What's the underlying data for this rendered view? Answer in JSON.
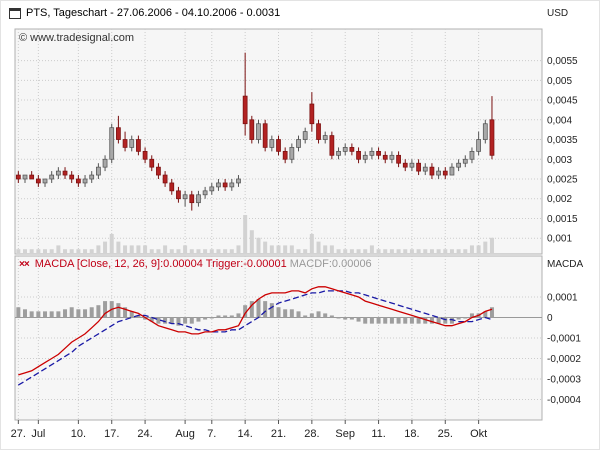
{
  "window": {
    "title": "PTS, Tageschart - 27.06.2006 - 04.10.2006 - 0.0031"
  },
  "watermark": "© www.tradesignal.com",
  "axes": {
    "price_unit": "USD",
    "macd_unit": "MACDA"
  },
  "indicator": {
    "prefix": "××",
    "macda": "MACDA [Close, 12, 26, 9]:0.00004",
    "trigger": "Trigger:-0.00001",
    "macdf": "MACDF:0.00006"
  },
  "colors": {
    "up": "#a8a8a8",
    "up_border": "#555555",
    "down": "#b22222",
    "down_border": "#7a1010",
    "macd_line": "#cc0000",
    "trigger_line": "#1a1aa6",
    "histogram": "#9e9e9e",
    "volume": "#d2d2d2",
    "grid": "#cccccc",
    "panel_bg": "#f6f6f6",
    "panel_border": "#b0b0b0",
    "axis_text": "#222222",
    "zero_line": "#999999"
  },
  "chart_data": [
    {
      "type": "candlestick",
      "symbol": "PTS",
      "timeframe": "Tageschart",
      "date_range": "27.06.2006 - 04.10.2006",
      "last_close": 0.0031,
      "ylabel": "USD",
      "ylim": [
        0.0006,
        0.0063
      ],
      "slots": 79,
      "y_ticks": [
        {
          "v": 0.0055,
          "label": "0,0055"
        },
        {
          "v": 0.005,
          "label": "0,005"
        },
        {
          "v": 0.0045,
          "label": "0,0045"
        },
        {
          "v": 0.004,
          "label": "0,004"
        },
        {
          "v": 0.0035,
          "label": "0,0035"
        },
        {
          "v": 0.003,
          "label": "0,003"
        },
        {
          "v": 0.0025,
          "label": "0,0025"
        },
        {
          "v": 0.002,
          "label": "0,002"
        },
        {
          "v": 0.0015,
          "label": "0,0015"
        },
        {
          "v": 0.001,
          "label": "0,001"
        }
      ],
      "x_ticks": [
        {
          "i": 0,
          "label": "27."
        },
        {
          "i": 3,
          "label": "Jul"
        },
        {
          "i": 9,
          "label": "10."
        },
        {
          "i": 14,
          "label": "17."
        },
        {
          "i": 19,
          "label": "24."
        },
        {
          "i": 25,
          "label": "Aug"
        },
        {
          "i": 29,
          "label": "7."
        },
        {
          "i": 34,
          "label": "14."
        },
        {
          "i": 39,
          "label": "21."
        },
        {
          "i": 44,
          "label": "28."
        },
        {
          "i": 49,
          "label": "Sep"
        },
        {
          "i": 54,
          "label": "11."
        },
        {
          "i": 59,
          "label": "18."
        },
        {
          "i": 64,
          "label": "25."
        },
        {
          "i": 69,
          "label": "Okt"
        }
      ],
      "candles": [
        [
          0.0026,
          0.0027,
          0.0024,
          0.0025
        ],
        [
          0.0025,
          0.0026,
          0.0024,
          0.0026
        ],
        [
          0.0026,
          0.0027,
          0.0025,
          0.0025
        ],
        [
          0.0025,
          0.0026,
          0.0023,
          0.0024
        ],
        [
          0.0024,
          0.0025,
          0.0023,
          0.0025
        ],
        [
          0.0025,
          0.0027,
          0.0024,
          0.0026
        ],
        [
          0.0026,
          0.0028,
          0.0025,
          0.0027
        ],
        [
          0.0027,
          0.0028,
          0.0025,
          0.0026
        ],
        [
          0.0026,
          0.0027,
          0.0024,
          0.0025
        ],
        [
          0.0025,
          0.0026,
          0.0023,
          0.0024
        ],
        [
          0.0024,
          0.0026,
          0.0023,
          0.0025
        ],
        [
          0.0025,
          0.0027,
          0.0024,
          0.0026
        ],
        [
          0.0026,
          0.0029,
          0.0025,
          0.0028
        ],
        [
          0.0028,
          0.0031,
          0.0027,
          0.003
        ],
        [
          0.003,
          0.0039,
          0.0029,
          0.0038
        ],
        [
          0.0038,
          0.0041,
          0.0034,
          0.0035
        ],
        [
          0.0035,
          0.0037,
          0.0032,
          0.0033
        ],
        [
          0.0033,
          0.0036,
          0.0032,
          0.0035
        ],
        [
          0.0035,
          0.0036,
          0.0031,
          0.0032
        ],
        [
          0.0032,
          0.0033,
          0.0029,
          0.003
        ],
        [
          0.003,
          0.0031,
          0.0027,
          0.0028
        ],
        [
          0.0028,
          0.0029,
          0.0025,
          0.0026
        ],
        [
          0.0026,
          0.0027,
          0.0023,
          0.0024
        ],
        [
          0.0024,
          0.0025,
          0.0021,
          0.0022
        ],
        [
          0.0022,
          0.0023,
          0.0019,
          0.002
        ],
        [
          0.002,
          0.0022,
          0.0018,
          0.0021
        ],
        [
          0.0021,
          0.0022,
          0.0017,
          0.0019
        ],
        [
          0.0019,
          0.0022,
          0.0018,
          0.0021
        ],
        [
          0.0021,
          0.0023,
          0.002,
          0.0022
        ],
        [
          0.0022,
          0.0024,
          0.0021,
          0.0023
        ],
        [
          0.0023,
          0.0025,
          0.0022,
          0.0024
        ],
        [
          0.0024,
          0.0025,
          0.0022,
          0.0023
        ],
        [
          0.0023,
          0.0025,
          0.0022,
          0.0024
        ],
        [
          0.0024,
          0.0026,
          0.0023,
          0.0025
        ],
        [
          0.0046,
          0.0057,
          0.0036,
          0.0039
        ],
        [
          0.004,
          0.0041,
          0.0034,
          0.0035
        ],
        [
          0.0035,
          0.004,
          0.0034,
          0.0039
        ],
        [
          0.0039,
          0.004,
          0.0032,
          0.0033
        ],
        [
          0.0033,
          0.0036,
          0.0032,
          0.0035
        ],
        [
          0.0035,
          0.0036,
          0.0031,
          0.0032
        ],
        [
          0.0032,
          0.0033,
          0.0029,
          0.003
        ],
        [
          0.003,
          0.0034,
          0.0029,
          0.0033
        ],
        [
          0.0033,
          0.0036,
          0.0032,
          0.0035
        ],
        [
          0.0035,
          0.0038,
          0.0034,
          0.0037
        ],
        [
          0.0044,
          0.0047,
          0.0037,
          0.0039
        ],
        [
          0.0039,
          0.004,
          0.0034,
          0.0035
        ],
        [
          0.0035,
          0.0037,
          0.0034,
          0.0036
        ],
        [
          0.0036,
          0.0037,
          0.003,
          0.0031
        ],
        [
          0.0031,
          0.0033,
          0.003,
          0.0032
        ],
        [
          0.0032,
          0.0034,
          0.0031,
          0.0033
        ],
        [
          0.0033,
          0.0034,
          0.0031,
          0.0032
        ],
        [
          0.0032,
          0.0033,
          0.0029,
          0.003
        ],
        [
          0.003,
          0.0032,
          0.0029,
          0.0031
        ],
        [
          0.0031,
          0.0033,
          0.003,
          0.0032
        ],
        [
          0.0032,
          0.0033,
          0.003,
          0.0031
        ],
        [
          0.0031,
          0.0032,
          0.0029,
          0.003
        ],
        [
          0.003,
          0.0032,
          0.0029,
          0.0031
        ],
        [
          0.0031,
          0.0032,
          0.0028,
          0.0029
        ],
        [
          0.0029,
          0.003,
          0.0027,
          0.0028
        ],
        [
          0.0028,
          0.003,
          0.0027,
          0.0029
        ],
        [
          0.0029,
          0.003,
          0.0026,
          0.0027
        ],
        [
          0.0027,
          0.0029,
          0.0026,
          0.0028
        ],
        [
          0.0028,
          0.0029,
          0.0025,
          0.0026
        ],
        [
          0.0026,
          0.0028,
          0.0025,
          0.0027
        ],
        [
          0.0027,
          0.0028,
          0.0025,
          0.0026
        ],
        [
          0.0026,
          0.0029,
          0.0026,
          0.0028
        ],
        [
          0.0028,
          0.003,
          0.0027,
          0.0029
        ],
        [
          0.0029,
          0.0031,
          0.0028,
          0.003
        ],
        [
          0.003,
          0.0033,
          0.0029,
          0.0032
        ],
        [
          0.0032,
          0.0037,
          0.0031,
          0.0035
        ],
        [
          0.0035,
          0.004,
          0.0034,
          0.0039
        ],
        [
          0.004,
          0.0046,
          0.003,
          0.0031
        ]
      ],
      "volume_rel": [
        1,
        1,
        1,
        1,
        1,
        1,
        2,
        1,
        1,
        1,
        1,
        1,
        2,
        3,
        5,
        3,
        2,
        2,
        2,
        2,
        1,
        1,
        2,
        1,
        1,
        2,
        1,
        1,
        1,
        1,
        1,
        1,
        1,
        2,
        10,
        6,
        4,
        3,
        2,
        2,
        2,
        2,
        1,
        1,
        5,
        3,
        2,
        2,
        1,
        1,
        1,
        1,
        1,
        2,
        1,
        1,
        1,
        1,
        1,
        1,
        1,
        1,
        1,
        1,
        1,
        1,
        1,
        1,
        2,
        2,
        3,
        4
      ]
    },
    {
      "type": "macd",
      "name": "MACDA [Close, 12, 26, 9]",
      "last_macd": 4e-05,
      "last_trigger": -1e-05,
      "last_macdf": 6e-05,
      "ylim": [
        -0.0005,
        0.0003
      ],
      "unit": 1e-05,
      "y_ticks": [
        {
          "v": 0.0001,
          "label": "0,0001"
        },
        {
          "v": 0,
          "label": "0"
        },
        {
          "v": -0.0001,
          "label": "-0,0001"
        },
        {
          "v": -0.0002,
          "label": "-0,0002"
        },
        {
          "v": -0.0003,
          "label": "-0,0003"
        },
        {
          "v": -0.0004,
          "label": "-0,0004"
        }
      ],
      "macd": [
        -28,
        -27,
        -26,
        -24,
        -22,
        -20,
        -18,
        -15,
        -12,
        -10,
        -8,
        -5,
        -2,
        2,
        4,
        5,
        4,
        3,
        2,
        0,
        -2,
        -4,
        -5,
        -6,
        -7,
        -7,
        -8,
        -8,
        -7,
        -7,
        -6,
        -6,
        -5,
        -4,
        2,
        6,
        9,
        11,
        12,
        12,
        12,
        13,
        13,
        12,
        14,
        15,
        15,
        14,
        13,
        12,
        11,
        10,
        8,
        7,
        6,
        5,
        4,
        3,
        2,
        1,
        0,
        -1,
        -2,
        -3,
        -4,
        -4,
        -3,
        -2,
        0,
        1,
        3,
        4
      ],
      "trigger": [
        -33,
        -31,
        -29,
        -27,
        -25,
        -23,
        -21,
        -19,
        -17,
        -14,
        -12,
        -10,
        -8,
        -6,
        -4,
        -2,
        -1,
        0,
        1,
        1,
        0,
        -1,
        -2,
        -3,
        -3,
        -4,
        -5,
        -6,
        -6,
        -7,
        -7,
        -7,
        -6,
        -6,
        -4,
        -2,
        0,
        3,
        5,
        7,
        8,
        9,
        10,
        11,
        12,
        12,
        13,
        13,
        13,
        13,
        12,
        12,
        11,
        10,
        9,
        8,
        7,
        6,
        5,
        4,
        3,
        2,
        1,
        0,
        -1,
        -1,
        -2,
        -2,
        -2,
        -1,
        0,
        -1
      ],
      "histogram": [
        5,
        4,
        3,
        3,
        3,
        3,
        3,
        4,
        5,
        4,
        4,
        5,
        6,
        8,
        8,
        7,
        5,
        3,
        1,
        -1,
        -2,
        -3,
        -3,
        -3,
        -4,
        -3,
        -3,
        -2,
        -1,
        0,
        1,
        1,
        1,
        2,
        6,
        8,
        9,
        8,
        7,
        5,
        4,
        4,
        3,
        1,
        2,
        3,
        2,
        1,
        0,
        -1,
        -1,
        -2,
        -3,
        -3,
        -3,
        -3,
        -3,
        -3,
        -3,
        -3,
        -3,
        -3,
        -3,
        -3,
        -3,
        -3,
        -1,
        0,
        2,
        2,
        3,
        5
      ]
    }
  ]
}
